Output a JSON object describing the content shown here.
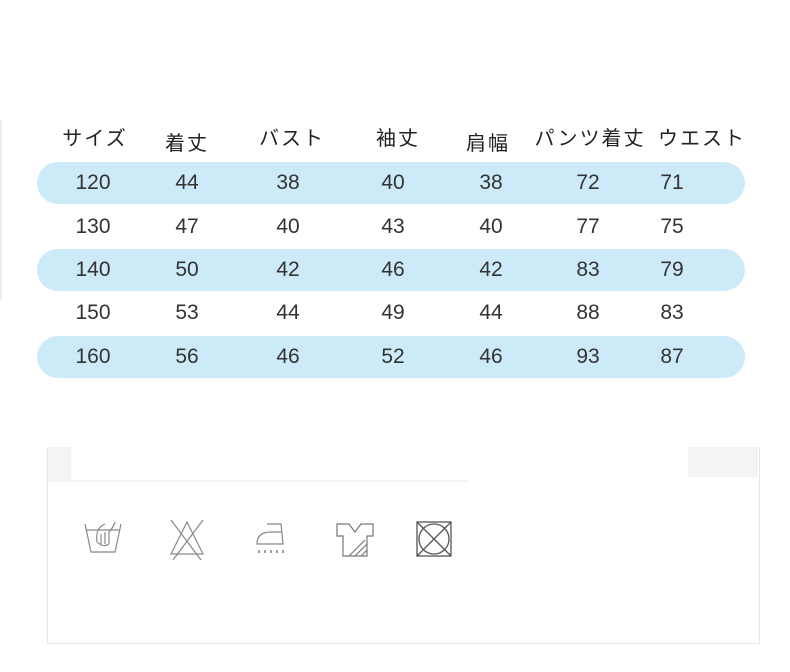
{
  "size_chart": {
    "headers": [
      "サイズ",
      "着丈",
      "バスト",
      "袖丈",
      "肩幅",
      "パンツ着丈",
      "ウエスト"
    ],
    "rows": [
      [
        "120",
        "44",
        "38",
        "40",
        "38",
        "72",
        "71"
      ],
      [
        "130",
        "47",
        "40",
        "43",
        "40",
        "77",
        "75"
      ],
      [
        "140",
        "50",
        "42",
        "46",
        "42",
        "83",
        "79"
      ],
      [
        "150",
        "53",
        "44",
        "49",
        "44",
        "88",
        "83"
      ],
      [
        "160",
        "56",
        "46",
        "52",
        "46",
        "93",
        "87"
      ]
    ],
    "band_color": "#cdeaf9"
  },
  "care_icons": [
    "hand-wash-icon",
    "do-not-bleach-icon",
    "iron-steam-icon",
    "flat-dry-shade-icon",
    "do-not-tumble-dry-icon"
  ]
}
